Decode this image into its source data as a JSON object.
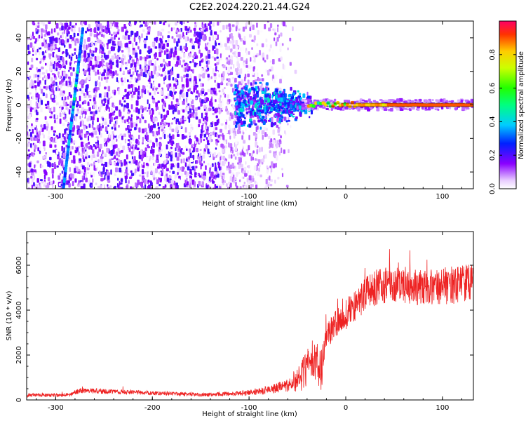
{
  "chart_data": [
    {
      "type": "heatmap",
      "title": "C2E2.2024.220.21.44.G24",
      "xlabel": "Height of straight line (km)",
      "ylabel": "Frequency (Hz)",
      "xlim": [
        -330,
        132
      ],
      "ylim": [
        -50,
        50
      ],
      "xticks": [
        "-300",
        "-200",
        "-100",
        "0",
        "100"
      ],
      "yticks": [
        "-40",
        "-20",
        "0",
        "20",
        "40"
      ],
      "colorbar": {
        "label": "Normalized spectral amplitude",
        "range": [
          0,
          1
        ],
        "ticks": [
          "0.0",
          "0.2",
          "0.4",
          "0.6",
          "0.8"
        ]
      },
      "features": {
        "carrier_line": {
          "freq_hz": 0,
          "x_start_km": -40,
          "x_end_km": 132,
          "amplitude": 0.9
        },
        "diagonal_streak": {
          "x_start_km": -292,
          "f_start_hz": -50,
          "x_end_km": -272,
          "f_end_hz": 45
        },
        "noise_fades_out_km": -60
      }
    },
    {
      "type": "line",
      "xlabel": "Height of straight line (km)",
      "ylabel": "SNR (10 * v/v)",
      "xlim": [
        -330,
        132
      ],
      "ylim": [
        0,
        7500
      ],
      "xticks": [
        "-300",
        "-200",
        "-100",
        "0",
        "100"
      ],
      "yticks": [
        "0",
        "2000",
        "4000",
        "6000"
      ],
      "series": [
        {
          "name": "SNR",
          "color": "#ee2222",
          "envelope": {
            "x": [
              -330,
              -285,
              -275,
              -150,
              -110,
              -80,
              -60,
              -45,
              -35,
              -25,
              -20,
              -10,
              0,
              10,
              20,
              35,
              50,
              80,
              110,
              132
            ],
            "value": [
              200,
              220,
              420,
              230,
              280,
              450,
              650,
              1100,
              1800,
              1400,
              2800,
              3400,
              3800,
              4200,
              4700,
              5100,
              5100,
              5000,
              5100,
              5300
            ],
            "noise": [
              80,
              80,
              120,
              80,
              120,
              180,
              300,
              700,
              900,
              1000,
              600,
              600,
              700,
              700,
              750,
              800,
              800,
              800,
              850,
              800
            ]
          }
        }
      ]
    }
  ]
}
